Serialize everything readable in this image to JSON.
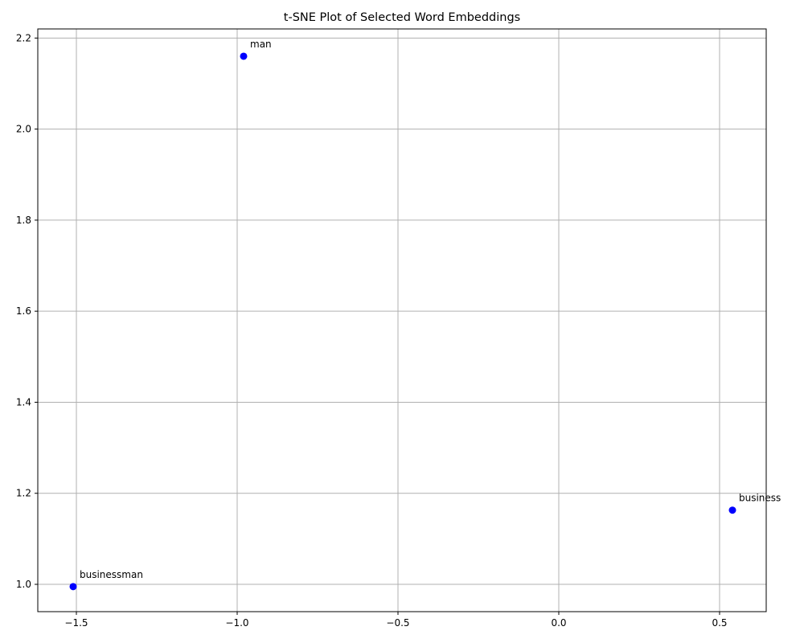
{
  "chart_data": {
    "type": "scatter",
    "title": "t-SNE Plot of Selected Word Embeddings",
    "xlabel": "",
    "ylabel": "",
    "xlim": [
      -1.62,
      0.645
    ],
    "ylim": [
      0.94,
      2.22
    ],
    "grid": true,
    "marker_color": "#0000ff",
    "grid_color": "#b0b0b0",
    "x_ticks": [
      {
        "value": -1.5,
        "label": "−1.5"
      },
      {
        "value": -1.0,
        "label": "−1.0"
      },
      {
        "value": -0.5,
        "label": "−0.5"
      },
      {
        "value": 0.0,
        "label": "0.0"
      },
      {
        "value": 0.5,
        "label": "0.5"
      }
    ],
    "y_ticks": [
      {
        "value": 1.0,
        "label": "1.0"
      },
      {
        "value": 1.2,
        "label": "1.2"
      },
      {
        "value": 1.4,
        "label": "1.4"
      },
      {
        "value": 1.6,
        "label": "1.6"
      },
      {
        "value": 1.8,
        "label": "1.8"
      },
      {
        "value": 2.0,
        "label": "2.0"
      },
      {
        "value": 2.2,
        "label": "2.2"
      }
    ],
    "points": [
      {
        "label": "man",
        "x": -0.98,
        "y": 2.16
      },
      {
        "label": "business",
        "x": 0.54,
        "y": 1.163
      },
      {
        "label": "businessman",
        "x": -1.51,
        "y": 0.995
      }
    ]
  }
}
